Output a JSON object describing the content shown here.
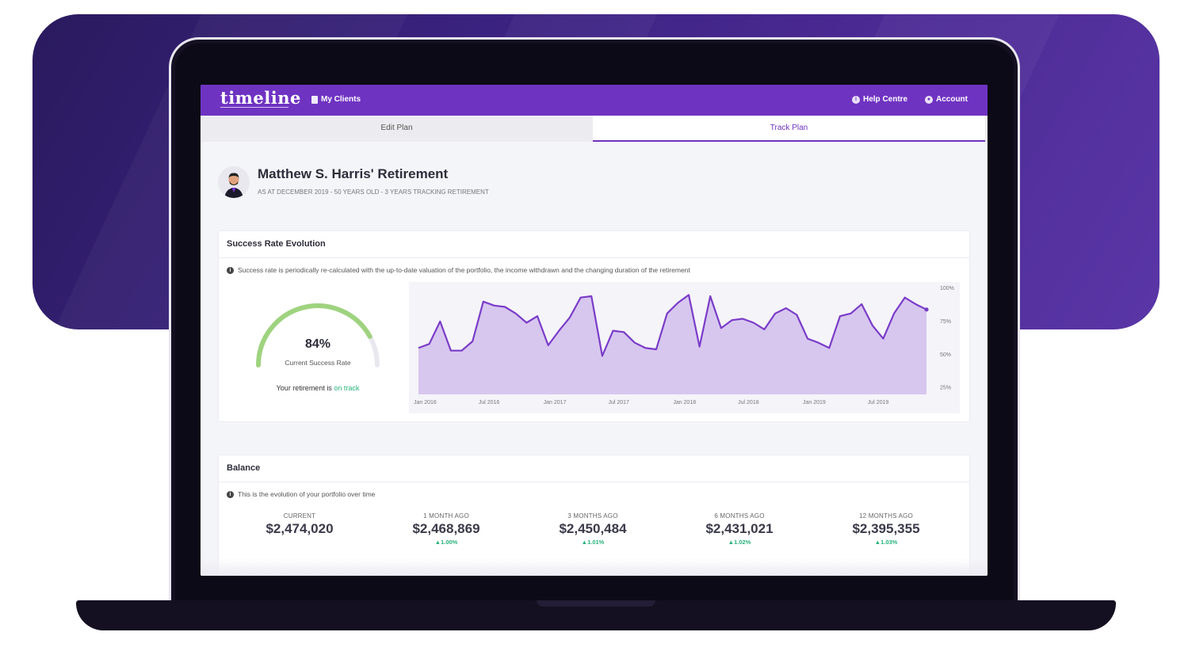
{
  "app": {
    "logo": "timeline"
  },
  "topbar": {
    "my_clients": "My Clients",
    "help_centre": "Help Centre",
    "account": "Account",
    "color": "#6f33c2"
  },
  "tabs": [
    {
      "label": "Edit Plan",
      "active": false
    },
    {
      "label": "Track Plan",
      "active": true
    }
  ],
  "client": {
    "title": "Matthew S. Harris' Retirement",
    "subtitle": "AS AT DECEMBER 2019 - 50 YEARS OLD - 3 YEARS TRACKING RETIREMENT"
  },
  "success_rate": {
    "heading": "Success Rate Evolution",
    "info": "Success rate is periodically re-calculated with the up-to-date valuation of the portfolio, the income withdrawn and the changing duration of the retirement",
    "gauge_value": "84%",
    "gauge_fraction": 0.84,
    "gauge_label": "Current Success Rate",
    "track_prefix": "Your retirement is",
    "track_status": "on track",
    "status_color": "#27b37a"
  },
  "chart_data": {
    "type": "area",
    "title": "",
    "xlabel": "",
    "ylabel": "",
    "ylim": [
      20,
      100
    ],
    "yticks": [
      "100%",
      "75%",
      "50%",
      "25%"
    ],
    "ytick_values": [
      100,
      75,
      50,
      25
    ],
    "xticks": [
      "Jan 2016",
      "Jul 2016",
      "Jan 2017",
      "Jul 2017",
      "Jan 2018",
      "Jul 2018",
      "Jan 2019",
      "Jul 2019"
    ],
    "xtick_values": [
      0,
      6,
      12,
      18,
      24,
      30,
      36,
      42
    ],
    "x": [
      0,
      1,
      2,
      3,
      4,
      5,
      6,
      7,
      8,
      9,
      10,
      11,
      12,
      13,
      14,
      15,
      16,
      17,
      18,
      19,
      20,
      21,
      22,
      23,
      24,
      25,
      26,
      27,
      28,
      29,
      30,
      31,
      32,
      33,
      34,
      35,
      36,
      37,
      38,
      39,
      40,
      41,
      42,
      43,
      44,
      45,
      46,
      47
    ],
    "values": [
      55,
      58,
      75,
      53,
      53,
      60,
      90,
      87,
      86,
      81,
      74,
      79,
      57,
      68,
      78,
      93,
      94,
      49,
      68,
      67,
      59,
      55,
      54,
      81,
      89,
      95,
      56,
      94,
      70,
      76,
      77,
      74,
      69,
      81,
      85,
      80,
      62,
      59,
      55,
      79,
      81,
      88,
      72,
      62,
      81,
      93,
      88,
      84
    ],
    "color": "#7a3cc8",
    "fill": "#d7c7ef"
  },
  "balance": {
    "heading": "Balance",
    "info": "This is the evolution of your portfolio over time",
    "items": [
      {
        "label": "CURRENT",
        "value": "$2,474,020",
        "change": ""
      },
      {
        "label": "1 MONTH AGO",
        "value": "$2,468,869",
        "change": "▲1.00%"
      },
      {
        "label": "3 MONTHS AGO",
        "value": "$2,450,484",
        "change": "▲1.01%"
      },
      {
        "label": "6 MONTHS AGO",
        "value": "$2,431,021",
        "change": "▲1.02%"
      },
      {
        "label": "12 MONTHS AGO",
        "value": "$2,395,355",
        "change": "▲1.03%"
      }
    ]
  }
}
